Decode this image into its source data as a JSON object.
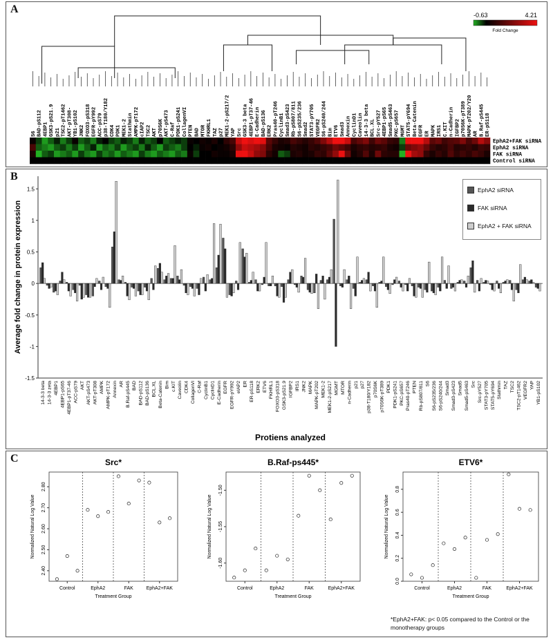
{
  "panel_a": {
    "letter": "A",
    "scale": {
      "min_label": "-0.63",
      "max_label": "4.21",
      "caption": "Fold Change",
      "colors": {
        "low": "#22b022",
        "mid": "#000000",
        "high": "#ee1111"
      }
    },
    "row_labels": [
      "EphA2+FAK siRNA",
      "EphA2 siRNA",
      "FAK siRNA",
      "Control siRNA"
    ],
    "col_labels": [
      "S6",
      "BAD-pS112",
      "4EBP1",
      "GSK3-pS21.9",
      "p21",
      "TSC2-pT1462",
      "AKT-pT308-",
      "YB1-pS102",
      "JNK2",
      "FOXO3-pS318",
      "EGFR-pY992",
      "ACC-pS79",
      "p38-T180/Y182",
      "CDK4",
      "PDK1",
      "MEK1-2",
      "Stathmin",
      "AMPK-pT172",
      "cIAP2",
      "TSC2",
      "AKT",
      "p70S6K",
      "AKT-pS473",
      "C-Raf",
      "PDK1-pS241",
      "CollagenVI",
      "PTEN",
      "BAD",
      "MTOR",
      "FKHRL1",
      "TAZ",
      "p27",
      "MEK1-2-pS217/2",
      "YAP",
      "Src",
      "GSK3-3 beta",
      "4EBP1-pT37-46",
      "E-Cadherin",
      "BAD-pS136",
      "ERK2",
      "Pras40-pT246",
      "CyclinB1",
      "Smad3-pS423",
      "Rb-pS807/811",
      "S6-pS235/236",
      "Smad2",
      "STAT3-pY705",
      "VEGFR2",
      "S6-pS240/244",
      "Bim",
      "ETV6",
      "Smad3",
      "Annexin",
      "CyclinD1",
      "Caveolin",
      "14-3-3 beta",
      "BCL.XL",
      "Src-pY527",
      "4EBP1-pS65",
      "Smad5-pS463",
      "PKC-pS657",
      "MGMT",
      "STAT5-pY694",
      "Beta-Catenin",
      "EGFR",
      "ER",
      "MAPK",
      "IRS1",
      "C.KIT",
      "n-Cadherin",
      "IGFBP2",
      "p70S6K-pT389",
      "MAPK-pT202/Y20",
      "AR",
      "B.Raf-pS445",
      "ER-pS118"
    ],
    "heatmap_rows": [
      [
        0.1,
        -0.2,
        -0.5,
        -0.3,
        -0.1,
        -0.4,
        -0.2,
        0.1,
        -0.3,
        -0.2,
        -0.4,
        -0.1,
        0.0,
        -0.2,
        -0.3,
        -0.1,
        -0.2,
        -0.4,
        -0.1,
        -0.3,
        -0.2,
        0.0,
        -0.3,
        -0.2,
        -0.1,
        -0.2,
        0.1,
        0.0,
        0.2,
        0.1,
        0.3,
        0.0,
        0.5,
        0.8,
        2.2,
        3.2,
        2.4,
        2.8,
        2.5,
        1.0,
        0.6,
        0.3,
        0.4,
        0.8,
        0.6,
        0.4,
        0.6,
        0.9,
        1.4,
        2.0,
        3.6,
        3.0,
        2.2,
        0.8,
        1.1,
        1.4,
        0.7,
        1.2,
        1.0,
        0.6,
        0.5,
        -0.4,
        2.6,
        3.4,
        3.8,
        2.0,
        1.0,
        1.2,
        0.7,
        0.9,
        1.0,
        1.4,
        0.8,
        1.2,
        2.0,
        1.5
      ],
      [
        0.8,
        -0.3,
        -0.4,
        -0.5,
        -0.3,
        -0.2,
        -0.4,
        -0.2,
        -0.5,
        -0.3,
        -0.1,
        -0.5,
        -0.3,
        -0.4,
        -0.2,
        -0.5,
        -0.3,
        -0.2,
        -0.4,
        -0.1,
        -0.3,
        -0.5,
        -0.2,
        -0.3,
        -0.4,
        -0.2,
        0.0,
        -0.1,
        0.1,
        0.2,
        0.0,
        0.1,
        0.2,
        0.5,
        1.6,
        2.2,
        2.0,
        1.8,
        1.5,
        0.8,
        0.3,
        0.2,
        0.1,
        0.4,
        0.3,
        0.2,
        0.5,
        0.4,
        0.6,
        0.8,
        1.2,
        1.0,
        0.7,
        0.3,
        0.5,
        0.6,
        0.4,
        0.5,
        0.6,
        0.3,
        0.2,
        -0.2,
        1.2,
        1.4,
        1.6,
        1.1,
        0.6,
        0.4,
        0.5,
        0.8,
        0.4,
        0.5,
        0.6,
        0.4,
        0.7,
        0.6
      ],
      [
        0.3,
        -0.6,
        -0.3,
        -0.2,
        -0.5,
        -0.4,
        -0.3,
        -0.5,
        -0.2,
        -0.4,
        -0.5,
        -0.2,
        -0.4,
        -0.3,
        -0.5,
        -0.3,
        -0.4,
        -0.5,
        -0.2,
        -0.4,
        -0.5,
        -0.3,
        -0.4,
        -0.5,
        -0.3,
        -0.4,
        0.1,
        -0.2,
        0.0,
        0.0,
        0.2,
        0.1,
        0.1,
        0.3,
        2.6,
        3.0,
        2.2,
        1.6,
        1.4,
        0.5,
        0.2,
        -0.3,
        -0.2,
        0.3,
        0.4,
        0.2,
        0.3,
        0.6,
        0.5,
        1.0,
        1.6,
        2.6,
        1.2,
        0.2,
        0.4,
        0.9,
        0.3,
        1.2,
        0.5,
        0.4,
        0.4,
        -0.6,
        3.4,
        1.8,
        1.6,
        0.6,
        0.3,
        0.6,
        0.4,
        0.9,
        0.5,
        0.7,
        0.5,
        0.8,
        0.6,
        0.3
      ],
      [
        0,
        0,
        0,
        0,
        0,
        0,
        0,
        0,
        0,
        0,
        0,
        0,
        0,
        0,
        0,
        0,
        0,
        0,
        0,
        0,
        0,
        0,
        0,
        0,
        0,
        0,
        0,
        0,
        0,
        0,
        0,
        0,
        0,
        0,
        0,
        0,
        0,
        0,
        0,
        0,
        0,
        0,
        0,
        0,
        0,
        0,
        0,
        0,
        0,
        0,
        0,
        0,
        0,
        0,
        0,
        0,
        0,
        0,
        0,
        0,
        0,
        0,
        0,
        0,
        0,
        0,
        0,
        0,
        0,
        0,
        0,
        0,
        0,
        0,
        0,
        0
      ]
    ]
  },
  "panel_b": {
    "letter": "B",
    "legend": [
      "EphA2 siRNA",
      "FAK siRNA",
      "EphA2 + FAK siRNA"
    ]
  },
  "panel_c": {
    "letter": "C",
    "footnote_1": "*EphA2+FAK: p< 0.05 compared to the Control or the",
    "footnote_2": "monotherapy groups"
  },
  "chart_data": [
    {
      "type": "bar",
      "title": "",
      "xlabel": "Protiens analyzed",
      "ylabel": "Average fold change in protein expression",
      "ylim": [
        -1.5,
        1.7
      ],
      "yticks": [
        -1.5,
        -1,
        -0.5,
        0,
        0.5,
        1,
        1.5
      ],
      "grid": false,
      "legend_position": "top-right",
      "categories": [
        "14-3-3 beta",
        "14-3-3 zeta",
        "4EBP1",
        "4EBP1-pS65",
        "4EBP1-pT37-46",
        "ACC-pS79",
        "AKT",
        "AKT-pS473",
        "AKT-pT308",
        "AMPK",
        "AMPK-pT172",
        "Annexin",
        "AR",
        "B.Raf-pS445",
        "BAD",
        "BAD-pS112",
        "BAD-pS136",
        "BCL.XL",
        "Beta-Catenin",
        "Bim",
        "c.KIT",
        "Caveolin",
        "CDK4",
        "CollagenVI",
        "C-Raf",
        "CyclinB1",
        "CyclinD1",
        "E-Cadherin",
        "EGFR",
        "EGFR-pY992",
        "eIAP2",
        "ER",
        "ER-pS118",
        "ERK2",
        "ETV6",
        "FKHRL1",
        "FOXO3-pS318",
        "GSK3-pS21.9",
        "IGFBP2",
        "IRS1",
        "JNK2",
        "MAPK",
        "MAPK-pT202",
        "MEK1-2",
        "MEK1-2-pS217",
        "MGMT",
        "MTOR",
        "n-Cadherin",
        "p21",
        "p27",
        "p38-T180/Y182",
        "p70S6K",
        "p70S6K-pT389",
        "PDK1",
        "PDK1-pS241",
        "PKC-pS657",
        "Pras40-pT246",
        "PTEN",
        "Rb-pS807/811",
        "S6",
        "S6-pS235/236",
        "S6-pS240/244",
        "Smad3",
        "Smad3-pS423",
        "Smad5",
        "Smad5-pS463",
        "Src",
        "Src-pY527",
        "STAT3-pY705",
        "STAT5-pY694",
        "Stathmin",
        "TAZ",
        "TSC2",
        "TSC2-pT1462",
        "VEGFR2",
        "YAP",
        "YB1-pS102"
      ],
      "series": [
        {
          "name": "EphA2 siRNA",
          "color": "#555555",
          "values": [
            0.25,
            -0.03,
            -0.14,
            0.04,
            0.02,
            -0.1,
            -0.03,
            -0.18,
            -0.2,
            0.04,
            -0.05,
            0.58,
            0.06,
            0.02,
            -0.06,
            -0.12,
            -0.06,
            0.08,
            0.24,
            0.06,
            0.08,
            0.12,
            -0.03,
            -0.05,
            -0.08,
            0.1,
            0.06,
            0.25,
            0.72,
            -0.18,
            0.04,
            0.55,
            0.02,
            0.06,
            -0.02,
            -0.04,
            -0.04,
            -0.05,
            0.06,
            -0.02,
            0.12,
            -0.1,
            -0.15,
            0.05,
            0.06,
            1.02,
            -0.04,
            0.06,
            -0.08,
            0.02,
            0.06,
            -0.04,
            0.02,
            -0.05,
            -0.02,
            0.04,
            -0.02,
            -0.04,
            -0.06,
            -0.1,
            -0.12,
            -0.06,
            0.05,
            -0.08,
            0.02,
            0.04,
            0.25,
            0.05,
            0.02,
            -0.02,
            0.04,
            0.02,
            0.05,
            -0.1,
            0.06,
            0.04,
            -0.06
          ]
        },
        {
          "name": "FAK siRNA",
          "color": "#2b2b2b",
          "values": [
            0.33,
            -0.08,
            -0.12,
            0.18,
            -0.12,
            -0.15,
            -0.25,
            -0.22,
            -0.05,
            -0.1,
            -0.08,
            0.82,
            0.05,
            -0.2,
            -0.08,
            -0.18,
            -0.12,
            -0.1,
            0.32,
            0.12,
            0.08,
            0.06,
            -0.15,
            -0.08,
            -0.18,
            -0.12,
            0.08,
            0.45,
            0.55,
            -0.2,
            -0.1,
            0.42,
            0.05,
            -0.12,
            0.1,
            -0.04,
            -0.2,
            -0.3,
            0.18,
            -0.06,
            0.1,
            -0.14,
            0.15,
            0.12,
            0.1,
            -1.0,
            -0.06,
            0.12,
            -0.2,
            0.05,
            0.18,
            -0.12,
            0.04,
            -0.1,
            0.06,
            -0.06,
            -0.12,
            -0.2,
            -0.08,
            -0.14,
            -0.15,
            -0.12,
            -0.08,
            -0.06,
            0.05,
            -0.06,
            0.36,
            -0.12,
            0.05,
            -0.1,
            -0.08,
            0.04,
            -0.1,
            -0.15,
            0.1,
            0.06,
            -0.08
          ]
        },
        {
          "name": "EphA2 + FAK siRNA",
          "color": "#cccccc",
          "values": [
            0.08,
            -0.06,
            -0.18,
            0.06,
            -0.2,
            -0.28,
            -0.22,
            -0.22,
            0.08,
            0.1,
            -0.38,
            1.62,
            0.12,
            -0.26,
            -0.2,
            -0.18,
            -0.26,
            0.28,
            0.18,
            0.16,
            0.6,
            0.22,
            -0.18,
            -0.2,
            0.08,
            0.14,
            0.95,
            0.94,
            -0.22,
            -0.15,
            0.65,
            0.48,
            0.18,
            -0.12,
            0.65,
            0.12,
            -0.22,
            -0.22,
            0.22,
            -0.14,
            0.4,
            -0.16,
            -0.4,
            -0.25,
            0.22,
            1.64,
            0.22,
            -0.4,
            0.42,
            0.08,
            -0.12,
            -0.38,
            0.42,
            -0.16,
            0.1,
            -0.12,
            0.08,
            -0.22,
            -0.22,
            0.34,
            -0.18,
            0.42,
            0.28,
            -0.12,
            0.06,
            0.12,
            -0.14,
            0.08,
            0.04,
            -0.12,
            -0.15,
            0.06,
            -0.28,
            0.3,
            0.06,
            0.02,
            -0.12
          ]
        }
      ]
    },
    {
      "type": "scatter",
      "title": "Src*",
      "xlabel": "Treatment Group",
      "ylabel": "Normalized Natural Log Value",
      "categories": [
        "Control",
        "EphA2",
        "FAK",
        "EphA2+FAK"
      ],
      "ylim": [
        2.35,
        2.87
      ],
      "yticks": [
        2.4,
        2.5,
        2.6,
        2.7,
        2.8
      ],
      "points": [
        [
          1,
          2.36
        ],
        [
          2,
          2.47
        ],
        [
          3,
          2.4
        ],
        [
          4,
          2.69
        ],
        [
          5,
          2.66
        ],
        [
          6,
          2.68
        ],
        [
          7,
          2.85
        ],
        [
          8,
          2.72
        ],
        [
          9,
          2.83
        ],
        [
          10,
          2.82
        ],
        [
          11,
          2.63
        ],
        [
          12,
          2.65
        ]
      ]
    },
    {
      "type": "scatter",
      "title": "B.Raf-ps445*",
      "xlabel": "Treatment Group",
      "ylabel": "Normalized Natural Log Value",
      "categories": [
        "Control",
        "EphA2",
        "FAK",
        "EphA2+FAK"
      ],
      "ylim": [
        -1.625,
        -1.475
      ],
      "yticks": [
        -1.6,
        -1.55,
        -1.5
      ],
      "points": [
        [
          1,
          -1.62
        ],
        [
          2,
          -1.61
        ],
        [
          3,
          -1.58
        ],
        [
          4,
          -1.61
        ],
        [
          5,
          -1.59
        ],
        [
          6,
          -1.595
        ],
        [
          7,
          -1.535
        ],
        [
          8,
          -1.48
        ],
        [
          9,
          -1.5
        ],
        [
          10,
          -1.54
        ],
        [
          11,
          -1.49
        ],
        [
          12,
          -1.48
        ]
      ]
    },
    {
      "type": "scatter",
      "title": "ETV6*",
      "xlabel": "Treatment Group",
      "ylabel": "Normalized Natural Log Value",
      "categories": [
        "Control",
        "EphA2",
        "FAK",
        "EphA2+FAK"
      ],
      "ylim": [
        0,
        0.95
      ],
      "yticks": [
        0.0,
        0.2,
        0.4,
        0.6,
        0.8
      ],
      "points": [
        [
          1,
          0.06
        ],
        [
          2,
          0.03
        ],
        [
          3,
          0.14
        ],
        [
          4,
          0.33
        ],
        [
          5,
          0.28
        ],
        [
          6,
          0.38
        ],
        [
          7,
          0.03
        ],
        [
          8,
          0.36
        ],
        [
          9,
          0.41
        ],
        [
          10,
          0.93
        ],
        [
          11,
          0.63
        ],
        [
          12,
          0.62
        ]
      ]
    }
  ]
}
